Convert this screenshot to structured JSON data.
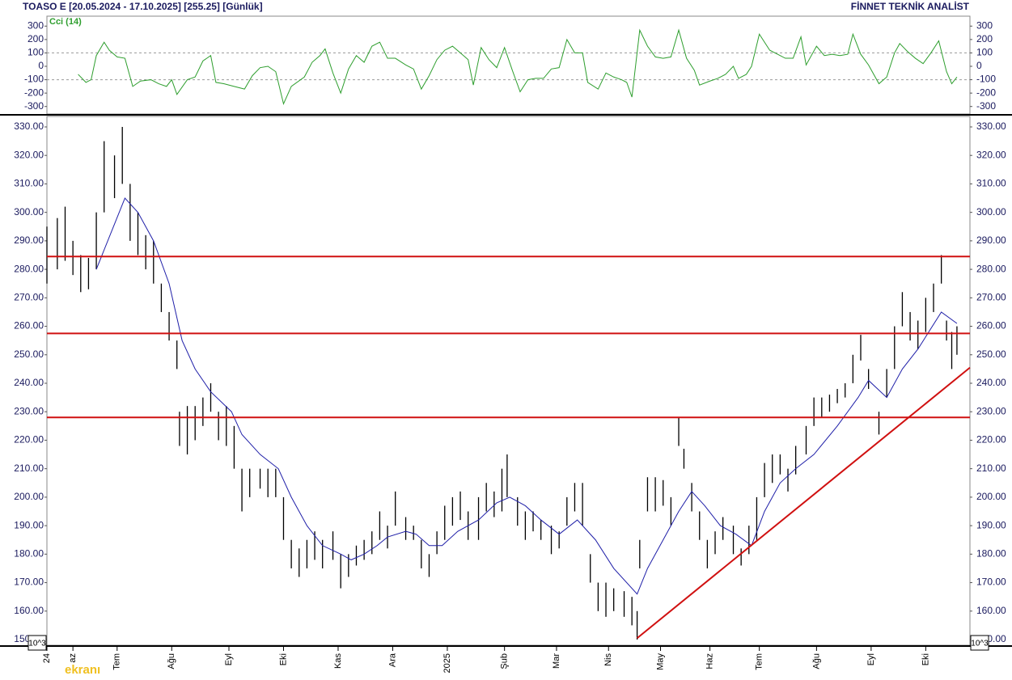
{
  "header": {
    "left": "TOASO E  [20.05.2024 - 17.10.2025]  [255.25]  [Günlük]",
    "right": "FİNNET TEKNİK ANALİST",
    "watermark": "ekranı",
    "scale_note": "10^3"
  },
  "chart_data": [
    {
      "type": "line",
      "title": "Cci (14)",
      "color": "#2e9e2e",
      "x": [
        12,
        15,
        17,
        19,
        22,
        24,
        27,
        30,
        33,
        36,
        40,
        43,
        46,
        48,
        50,
        54,
        57,
        60,
        63,
        65,
        68,
        72,
        76,
        79,
        82,
        85,
        88,
        91,
        94,
        99,
        102,
        105,
        107,
        110,
        113,
        116,
        119,
        122,
        125,
        128,
        131,
        134,
        138,
        141,
        144,
        147,
        150,
        153,
        156,
        159,
        162,
        164,
        167,
        170,
        173,
        176,
        179,
        182,
        185,
        188,
        191,
        194,
        197,
        200,
        203,
        206,
        208,
        212,
        215,
        218,
        221,
        223,
        225,
        228,
        231,
        234,
        237,
        240,
        243,
        246,
        249,
        251,
        255,
        258,
        261,
        264,
        266,
        269,
        271,
        274,
        278,
        281,
        284,
        287,
        290,
        292,
        296,
        299,
        302,
        305,
        308,
        310,
        313,
        316,
        320,
        323,
        326,
        328,
        331,
        334,
        337,
        340,
        343,
        346,
        348,
        350
      ],
      "values": [
        -60,
        -120,
        -100,
        80,
        180,
        120,
        70,
        60,
        -150,
        -110,
        -100,
        -130,
        -150,
        -100,
        -210,
        -100,
        -80,
        40,
        80,
        -120,
        -130,
        -150,
        -170,
        -70,
        -10,
        0,
        -40,
        -280,
        -150,
        -80,
        30,
        80,
        130,
        -50,
        -200,
        -20,
        80,
        30,
        150,
        180,
        60,
        60,
        10,
        -20,
        -170,
        -70,
        50,
        120,
        150,
        100,
        50,
        -140,
        140,
        50,
        -10,
        140,
        -30,
        -190,
        -100,
        -90,
        -90,
        -20,
        -10,
        200,
        100,
        100,
        -120,
        -170,
        -50,
        -80,
        -100,
        -120,
        -230,
        270,
        150,
        70,
        60,
        70,
        270,
        60,
        -30,
        -140,
        -110,
        -90,
        -60,
        0,
        -90,
        -60,
        0,
        240,
        120,
        90,
        60,
        60,
        220,
        10,
        150,
        80,
        90,
        80,
        90,
        240,
        90,
        10,
        -130,
        -80,
        100,
        170,
        110,
        60,
        20,
        100,
        190,
        -40,
        -130,
        -80
      ],
      "xlim": [
        0,
        355
      ],
      "ylim": [
        -350,
        350
      ],
      "yticks": [
        300,
        200,
        100,
        0,
        -100,
        -200,
        -300
      ],
      "reference_lines": [
        100,
        -100
      ]
    },
    {
      "type": "ohlc",
      "color": "#000000",
      "x": [
        0,
        4,
        7,
        10,
        13,
        16,
        19,
        22,
        26,
        29,
        32,
        35,
        38,
        41,
        44,
        47,
        50,
        51,
        54,
        57,
        60,
        63,
        66,
        69,
        72,
        75,
        78,
        82,
        85,
        88,
        91,
        94,
        97,
        100,
        103,
        106,
        110,
        113,
        116,
        119,
        122,
        125,
        128,
        131,
        134,
        138,
        141,
        144,
        147,
        150,
        153,
        156,
        159,
        162,
        166,
        169,
        172,
        175,
        177,
        181,
        184,
        187,
        190,
        194,
        197,
        200,
        203,
        206,
        209,
        212,
        215,
        218,
        222,
        225,
        227,
        228,
        231,
        234,
        237,
        240,
        243,
        245,
        248,
        251,
        254,
        257,
        260,
        264,
        267,
        270,
        273,
        276,
        279,
        282,
        285,
        288,
        292,
        295,
        298,
        301,
        304,
        307,
        310,
        313,
        316,
        320,
        323,
        326,
        329,
        332,
        335,
        338,
        341,
        344,
        346,
        348,
        350
      ],
      "high": [
        295,
        298,
        302,
        290,
        285,
        284,
        300,
        325,
        320,
        330,
        310,
        300,
        292,
        290,
        275,
        265,
        255,
        230,
        232,
        232,
        235,
        240,
        230,
        232,
        225,
        210,
        210,
        210,
        210,
        210,
        200,
        185,
        182,
        185,
        188,
        185,
        188,
        180,
        180,
        183,
        185,
        188,
        195,
        190,
        202,
        193,
        190,
        185,
        180,
        188,
        197,
        200,
        202,
        195,
        200,
        205,
        202,
        210,
        215,
        200,
        195,
        195,
        192,
        190,
        188,
        200,
        205,
        205,
        180,
        170,
        170,
        168,
        167,
        165,
        160,
        185,
        207,
        207,
        206,
        200,
        228,
        217,
        205,
        195,
        185,
        188,
        193,
        190,
        182,
        190,
        200,
        212,
        215,
        215,
        210,
        218,
        225,
        235,
        235,
        236,
        238,
        240,
        250,
        257,
        245,
        230,
        245,
        260,
        272,
        265,
        262,
        270,
        275,
        285,
        262,
        258,
        260
      ],
      "low": [
        275,
        280,
        283,
        278,
        272,
        273,
        280,
        300,
        305,
        310,
        290,
        285,
        280,
        275,
        265,
        255,
        245,
        218,
        215,
        220,
        225,
        230,
        220,
        218,
        210,
        195,
        200,
        203,
        200,
        200,
        185,
        175,
        172,
        175,
        178,
        175,
        178,
        168,
        172,
        176,
        178,
        180,
        185,
        182,
        190,
        185,
        185,
        175,
        172,
        180,
        185,
        190,
        192,
        185,
        185,
        195,
        193,
        195,
        200,
        190,
        185,
        188,
        185,
        180,
        182,
        190,
        195,
        190,
        170,
        160,
        158,
        160,
        158,
        155,
        150,
        175,
        195,
        195,
        197,
        190,
        218,
        210,
        195,
        185,
        175,
        180,
        185,
        180,
        176,
        180,
        185,
        200,
        205,
        208,
        202,
        208,
        215,
        225,
        228,
        230,
        233,
        235,
        240,
        248,
        238,
        222,
        235,
        245,
        260,
        255,
        252,
        258,
        265,
        275,
        255,
        245,
        250
      ],
      "ma": {
        "x": [
          19,
          30,
          35,
          41,
          47,
          52,
          57,
          63,
          71,
          75,
          82,
          89,
          94,
          100,
          106,
          113,
          117,
          122,
          127,
          131,
          138,
          142,
          147,
          152,
          158,
          166,
          173,
          178,
          184,
          190,
          197,
          204,
          211,
          218,
          227,
          231,
          237,
          243,
          248,
          253,
          259,
          265,
          271,
          276,
          282,
          288,
          295,
          304,
          312,
          316,
          323,
          329,
          335,
          344,
          350
        ],
        "values": [
          280,
          305,
          300,
          290,
          275,
          255,
          245,
          237,
          230,
          222,
          215,
          210,
          200,
          190,
          183,
          180,
          178,
          180,
          183,
          186,
          188,
          187,
          183,
          183,
          188,
          192,
          198,
          200,
          197,
          192,
          187,
          192,
          185,
          175,
          166,
          175,
          185,
          195,
          202,
          197,
          190,
          187,
          183,
          195,
          205,
          210,
          215,
          225,
          235,
          241,
          235,
          245,
          252,
          265,
          261
        ],
        "color": "#1f1fa8"
      },
      "hlines": [
        284.5,
        257.5,
        228
      ],
      "line_color": "#d01010",
      "trendline": {
        "x": [
          227,
          355
        ],
        "y": [
          150.5,
          245.5
        ]
      },
      "xlim": [
        0,
        355
      ],
      "ylim": [
        148.3,
        333.4
      ],
      "yticks": [
        {
          "value": 330,
          "label": "330.00"
        },
        {
          "value": 320,
          "label": "320.00"
        },
        {
          "value": 310,
          "label": "310.00"
        },
        {
          "value": 300,
          "label": "300.00"
        },
        {
          "value": 290,
          "label": "290.00"
        },
        {
          "value": 280,
          "label": "280.00"
        },
        {
          "value": 270,
          "label": "270.00"
        },
        {
          "value": 260,
          "label": "260.00"
        },
        {
          "value": 250,
          "label": "250.00"
        },
        {
          "value": 240,
          "label": "240.00"
        },
        {
          "value": 230,
          "label": "230.00"
        },
        {
          "value": 220,
          "label": "220.00"
        },
        {
          "value": 210,
          "label": "210.00"
        },
        {
          "value": 200,
          "label": "200.00"
        },
        {
          "value": 190,
          "label": "190.00"
        },
        {
          "value": 180,
          "label": "180.00"
        },
        {
          "value": 170,
          "label": "170.00"
        },
        {
          "value": 160,
          "label": "160.00"
        },
        {
          "value": 150,
          "label": "150.00"
        }
      ],
      "xticks": [
        {
          "value": 0,
          "label": "24"
        },
        {
          "value": 10,
          "label": "az"
        },
        {
          "value": 27,
          "label": "Tem"
        },
        {
          "value": 48,
          "label": "Ağu"
        },
        {
          "value": 70,
          "label": "Eyl"
        },
        {
          "value": 91,
          "label": "Eki"
        },
        {
          "value": 112,
          "label": "Kas"
        },
        {
          "value": 133,
          "label": "Ara"
        },
        {
          "value": 154,
          "label": "2025"
        },
        {
          "value": 176,
          "label": "Şub"
        },
        {
          "value": 196,
          "label": "Mar"
        },
        {
          "value": 216,
          "label": "Nis"
        },
        {
          "value": 236,
          "label": "May"
        },
        {
          "value": 255,
          "label": "Haz"
        },
        {
          "value": 274,
          "label": "Tem"
        },
        {
          "value": 296,
          "label": "Ağu"
        },
        {
          "value": 317,
          "label": "Eyl"
        },
        {
          "value": 338,
          "label": "Eki"
        }
      ]
    }
  ]
}
